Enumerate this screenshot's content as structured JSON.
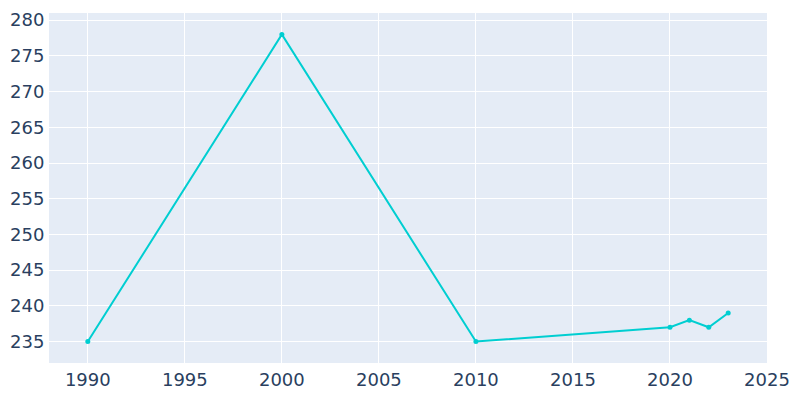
{
  "chart_data": {
    "type": "line",
    "x": [
      1990,
      2000,
      2010,
      2020,
      2021,
      2022,
      2023
    ],
    "values": [
      235,
      278,
      235,
      237,
      238,
      237,
      239
    ],
    "color": "#00ced1",
    "marker": "circle",
    "xlim": [
      1988,
      2025
    ],
    "xticks": [
      1990,
      1995,
      2000,
      2005,
      2010,
      2015,
      2020,
      2025
    ],
    "ylim": [
      232,
      281
    ],
    "yticks": [
      235,
      240,
      245,
      250,
      255,
      260,
      265,
      270,
      275,
      280
    ],
    "grid": true
  }
}
